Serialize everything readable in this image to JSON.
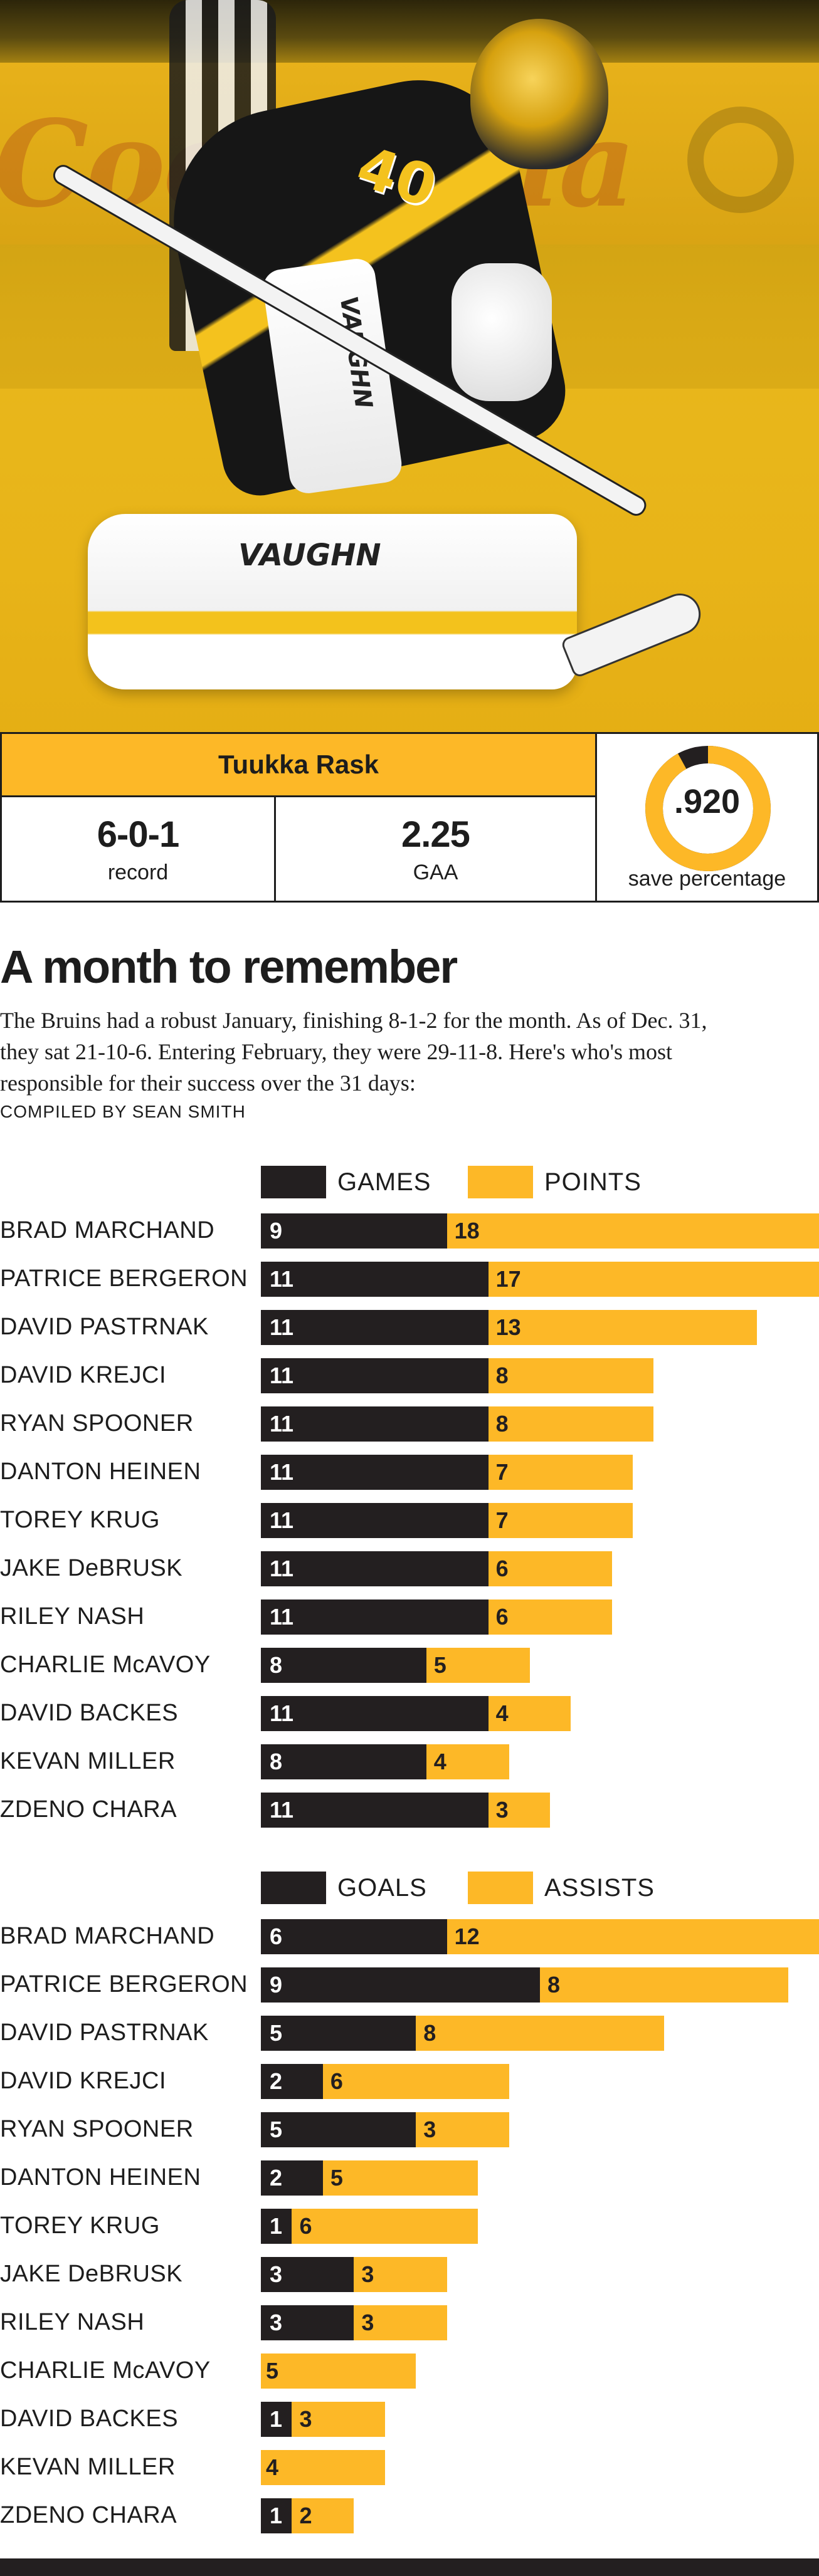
{
  "photo": {
    "description_icon": "goalie-photo",
    "jersey_number": "40",
    "pads_brand": "VAUGHN",
    "blocker_brand": "VAUGHN"
  },
  "stats_box": {
    "player": "Tuukka Rask",
    "record_value": "6-0-1",
    "record_label": "record",
    "gaa_value": "2.25",
    "gaa_label": "GAA",
    "save_value": ".920",
    "save_fraction": 0.92,
    "save_label": "save percentage"
  },
  "article": {
    "headline": "A month to remember",
    "dek_line1": "The Bruins had a robust January, finishing 8-1-2 for the month. As of Dec. 31,",
    "dek_line2": "they sat 21-10-6. Entering February, they were 29-11-8. Here's who's most",
    "dek_line3": "responsible for their success over the 31 days:",
    "credit": "COMPILED BY SEAN SMITH"
  },
  "colors": {
    "dark": "#231f20",
    "gold": "#fdb827"
  },
  "chart_data": [
    {
      "type": "bar",
      "stacked": true,
      "orientation": "horizontal",
      "categories": [
        "BRAD MARCHAND",
        "PATRICE BERGERON",
        "DAVID PASTRNAK",
        "DAVID KREJCI",
        "RYAN SPOONER",
        "DANTON HEINEN",
        "TOREY KRUG",
        "JAKE DeBRUSK",
        "RILEY NASH",
        "CHARLIE McAVOY",
        "DAVID BACKES",
        "KEVAN MILLER",
        "ZDENO CHARA"
      ],
      "series": [
        {
          "name": "GAMES",
          "values": [
            9,
            11,
            11,
            11,
            11,
            11,
            11,
            11,
            11,
            8,
            11,
            8,
            11
          ]
        },
        {
          "name": "POINTS",
          "values": [
            18,
            17,
            13,
            8,
            8,
            7,
            7,
            6,
            6,
            5,
            4,
            4,
            3
          ]
        }
      ],
      "xlim": [
        0,
        27
      ]
    },
    {
      "type": "bar",
      "stacked": true,
      "orientation": "horizontal",
      "categories": [
        "BRAD MARCHAND",
        "PATRICE BERGERON",
        "DAVID PASTRNAK",
        "DAVID KREJCI",
        "RYAN SPOONER",
        "DANTON HEINEN",
        "TOREY KRUG",
        "JAKE DeBRUSK",
        "RILEY NASH",
        "CHARLIE McAVOY",
        "DAVID BACKES",
        "KEVAN MILLER",
        "ZDENO CHARA"
      ],
      "series": [
        {
          "name": "GOALS",
          "values": [
            6,
            9,
            5,
            2,
            5,
            2,
            1,
            3,
            3,
            0,
            1,
            0,
            1
          ]
        },
        {
          "name": "ASSISTS",
          "values": [
            12,
            8,
            8,
            6,
            3,
            5,
            6,
            3,
            3,
            5,
            3,
            4,
            2
          ]
        }
      ],
      "xlim": [
        0,
        18
      ]
    }
  ]
}
